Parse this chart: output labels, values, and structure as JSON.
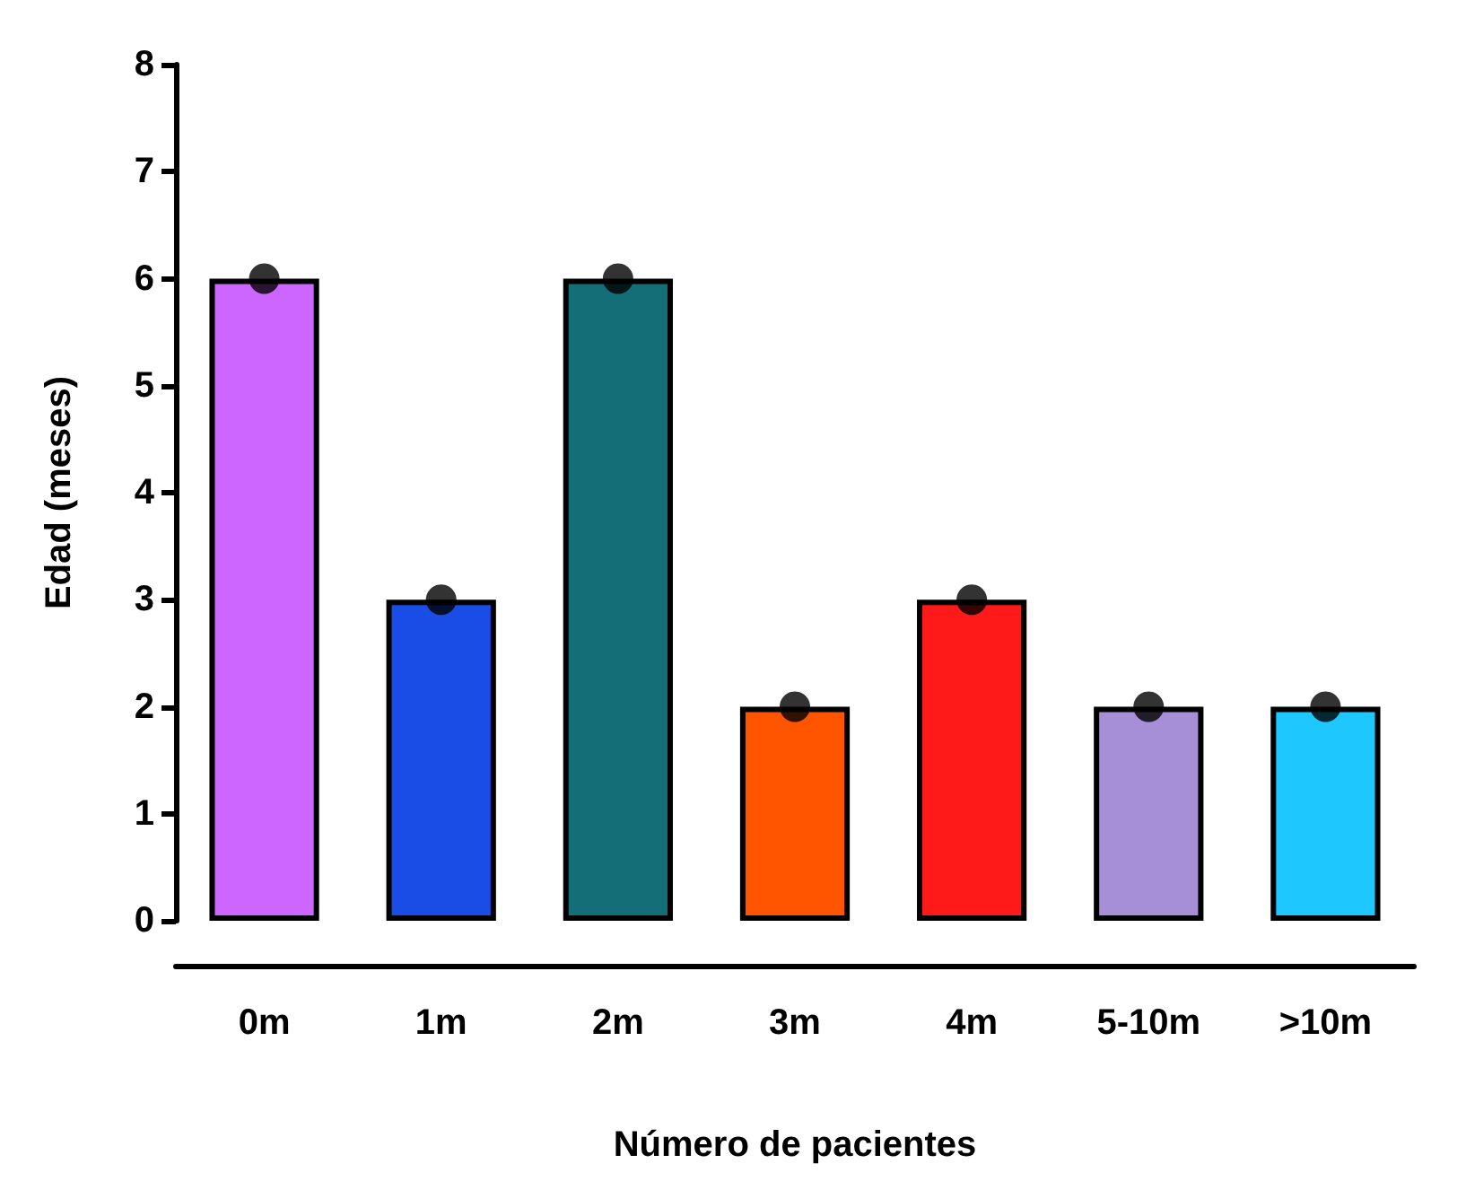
{
  "chart_data": {
    "type": "bar",
    "xlabel": "Número de pacientes",
    "ylabel": "Edad (meses)",
    "categories": [
      "0m",
      "1m",
      "2m",
      "3m",
      "4m",
      "5-10m",
      ">10m"
    ],
    "series": [
      {
        "colors": [
          "#cc66ff",
          "#1a4de6",
          "#146e78",
          "#ff5500",
          "#ff1a1a",
          "#a68fd6",
          "#1ec8ff"
        ],
        "values": [
          6,
          3,
          6,
          2,
          3,
          2,
          2
        ]
      },
      {
        "type": "scatter",
        "color": "#000000",
        "marker": "circle",
        "x": [
          "0m",
          "1m",
          "2m",
          "3m",
          "4m",
          "5-10m",
          ">10m"
        ],
        "values": [
          6,
          3,
          6,
          2,
          3,
          2,
          2
        ]
      }
    ],
    "ylim": [
      0,
      8
    ],
    "yticks": [
      0,
      1,
      2,
      3,
      4,
      5,
      6,
      7,
      8
    ],
    "grid": false
  }
}
